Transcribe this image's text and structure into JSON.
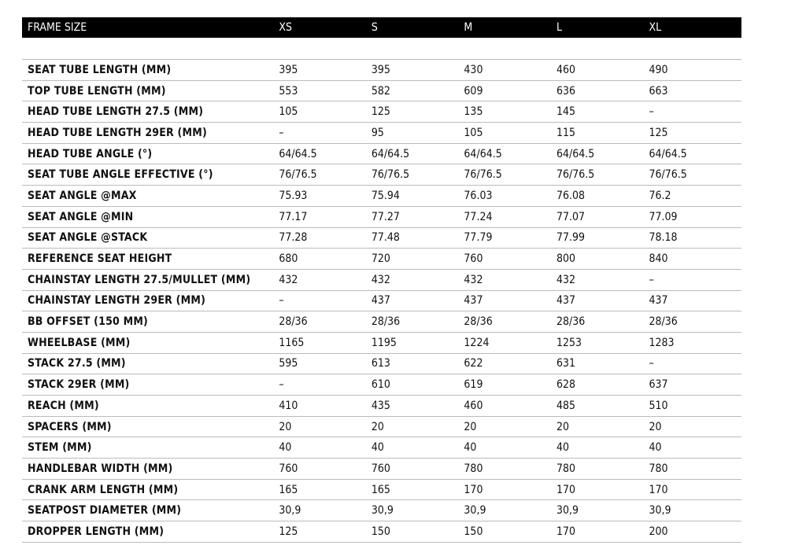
{
  "header": {
    "label": "FRAME SIZE",
    "sizes": [
      "XS",
      "S",
      "M",
      "L",
      "XL"
    ]
  },
  "rows": [
    {
      "label": "SEAT TUBE LENGTH (MM)",
      "values": [
        "395",
        "395",
        "430",
        "460",
        "490"
      ]
    },
    {
      "label": "TOP TUBE LENGTH (MM)",
      "values": [
        "553",
        "582",
        "609",
        "636",
        "663"
      ]
    },
    {
      "label": "HEAD TUBE LENGTH 27.5 (MM)",
      "values": [
        "105",
        "125",
        "135",
        "145",
        "–"
      ]
    },
    {
      "label": "HEAD TUBE LENGTH 29ER (MM)",
      "values": [
        "–",
        "95",
        "105",
        "115",
        "125"
      ]
    },
    {
      "label": "HEAD TUBE ANGLE (°)",
      "values": [
        "64/64.5",
        "64/64.5",
        "64/64.5",
        "64/64.5",
        "64/64.5"
      ]
    },
    {
      "label": "SEAT TUBE ANGLE EFFECTIVE (°)",
      "values": [
        "76/76.5",
        "76/76.5",
        "76/76.5",
        "76/76.5",
        "76/76.5"
      ]
    },
    {
      "label": "SEAT ANGLE @MAX",
      "values": [
        "75.93",
        "75.94",
        "76.03",
        "76.08",
        "76.2"
      ]
    },
    {
      "label": "SEAT ANGLE @MIN",
      "values": [
        "77.17",
        "77.27",
        "77.24",
        "77.07",
        "77.09"
      ]
    },
    {
      "label": "SEAT ANGLE @STACK",
      "values": [
        "77.28",
        "77.48",
        "77.79",
        "77.99",
        "78.18"
      ]
    },
    {
      "label": "REFERENCE SEAT HEIGHT",
      "values": [
        "680",
        "720",
        "760",
        "800",
        "840"
      ]
    },
    {
      "label": "CHAINSTAY LENGTH 27.5/MULLET (MM)",
      "values": [
        "432",
        "432",
        "432",
        "432",
        "–"
      ]
    },
    {
      "label": "CHAINSTAY LENGTH 29ER (MM)",
      "values": [
        "–",
        "437",
        "437",
        "437",
        "437"
      ]
    },
    {
      "label": "BB OFFSET (150 MM)",
      "values": [
        "28/36",
        "28/36",
        "28/36",
        "28/36",
        "28/36"
      ]
    },
    {
      "label": "WHEELBASE (MM)",
      "values": [
        "1165",
        "1195",
        "1224",
        "1253",
        "1283"
      ]
    },
    {
      "label": "STACK 27.5 (MM)",
      "values": [
        "595",
        "613",
        "622",
        "631",
        "–"
      ]
    },
    {
      "label": "STACK 29ER (MM)",
      "values": [
        "–",
        "610",
        "619",
        "628",
        "637"
      ]
    },
    {
      "label": "REACH (MM)",
      "values": [
        "410",
        "435",
        "460",
        "485",
        "510"
      ]
    },
    {
      "label": "SPACERS (MM)",
      "values": [
        "20",
        "20",
        "20",
        "20",
        "20"
      ]
    },
    {
      "label": "STEM (MM)",
      "values": [
        "40",
        "40",
        "40",
        "40",
        "40"
      ]
    },
    {
      "label": "HANDLEBAR WIDTH (MM)",
      "values": [
        "760",
        "760",
        "780",
        "780",
        "780"
      ]
    },
    {
      "label": "CRANK ARM LENGTH (MM)",
      "values": [
        "165",
        "165",
        "170",
        "170",
        "170"
      ]
    },
    {
      "label": "SEATPOST DIAMETER (MM)",
      "values": [
        "30,9",
        "30,9",
        "30,9",
        "30,9",
        "30,9"
      ]
    },
    {
      "label": "DROPPER LENGTH (MM)",
      "values": [
        "125",
        "150",
        "150",
        "170",
        "200"
      ]
    }
  ]
}
